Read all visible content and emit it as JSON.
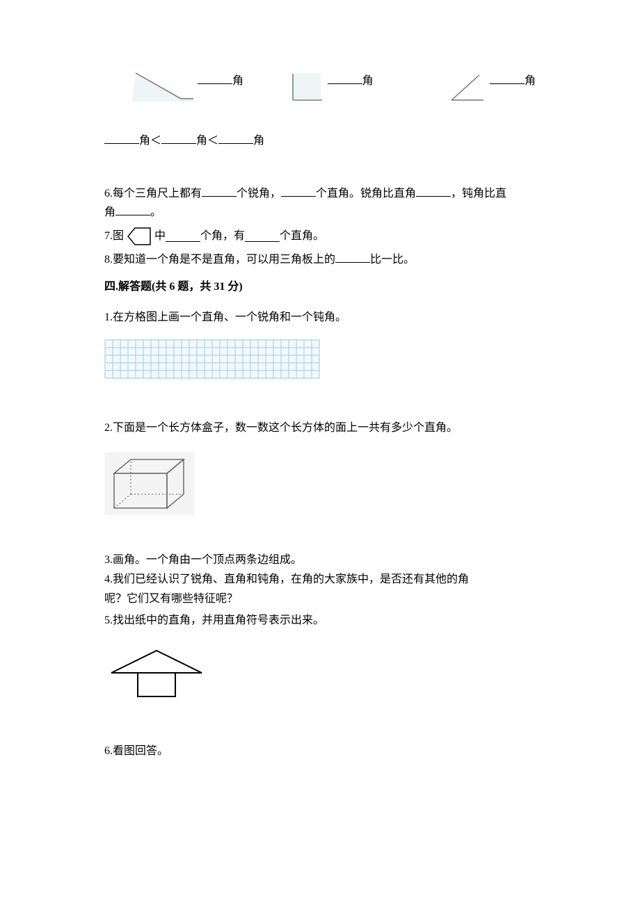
{
  "angles": {
    "label_suffix": "角",
    "compare": {
      "sep": "＜",
      "blank_width": 50
    },
    "diagram_colors": {
      "stroke": "#777777",
      "fill": "#eef5f4"
    }
  },
  "q6": {
    "prefix": "6.每个三角尺上都有",
    "mid1": "个锐角，",
    "mid2": "个直角。锐角比直角",
    "mid3": "，钝角比直",
    "line2_prefix": "角",
    "end": "。"
  },
  "q7": {
    "prefix": "7.图",
    "mid1": "中",
    "mid2": "个角，有",
    "mid3": "个直角。",
    "pentagon_stroke": "#000000"
  },
  "q8": {
    "prefix": "8.要知道一个角是不是直角，可以用三角板上的",
    "suffix": "比一比。"
  },
  "section4": {
    "header": "四.解答题(共 6 题，共 31 分)"
  },
  "p1": {
    "text": "1.在方格图上画一个直角、一个锐角和一个钝角。",
    "grid": {
      "cols": 28,
      "rows": 5,
      "cell": 11,
      "line": "#9fcbe0",
      "bg": "#f2f9fd"
    }
  },
  "p2": {
    "text": "2.下面是一个长方体盒子，数一数这个长方体的面上一共有多少个直角。",
    "cuboid": {
      "stroke": "#555555",
      "bg": "#f4f4f4"
    }
  },
  "p3": {
    "text": "3.画角。一个角由一个顶点两条边组成。"
  },
  "p4": {
    "line1": "4.我们已经认识了锐角、直角和钝角，在角的大家族中，是否还有其他的角",
    "line2": "呢？它们又有哪些特征呢？"
  },
  "p5": {
    "text": "5.找出纸中的直角，并用直角符号表示出来。",
    "house": {
      "stroke": "#000000"
    }
  },
  "p6": {
    "text": "6.看图回答。"
  }
}
